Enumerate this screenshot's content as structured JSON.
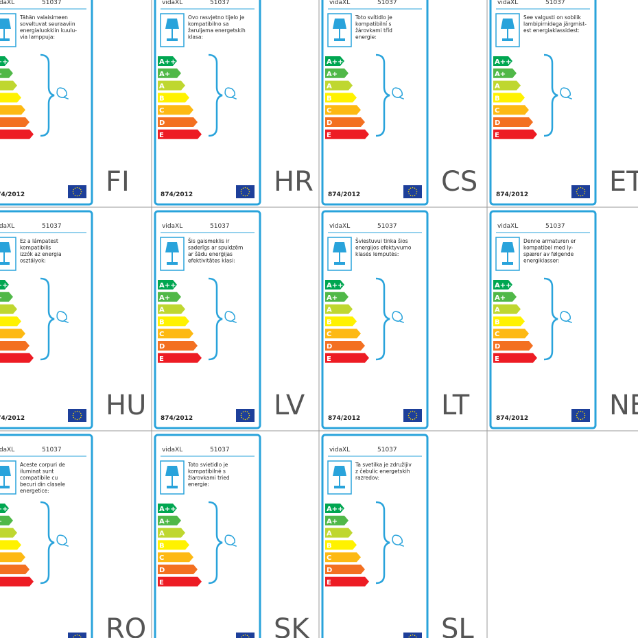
{
  "brand": "vidaXL",
  "model": "51037",
  "regulation": "874/2012",
  "energy_classes": [
    "A++",
    "A+",
    "A",
    "B",
    "C",
    "D",
    "E"
  ],
  "labels": [
    {
      "country": "FI",
      "text": [
        "Tähän valaisimeen",
        "soveltuvat seuraaviin",
        "energialuokkiin kuulu-",
        "via lamppuja:"
      ]
    },
    {
      "country": "HR",
      "text": [
        "Ovo rasvjetno tijelo je",
        "kompatibilno sa",
        "žaruljama energetskih",
        "klasa:"
      ]
    },
    {
      "country": "CS",
      "text": [
        "Toto svítidlo je",
        "kompatibilní s",
        "žárovkami tříd",
        "energie:"
      ]
    },
    {
      "country": "ET",
      "text": [
        "See valgusti on sobilik",
        "lambipirnidega järgmist-",
        "est energiaklassidest:"
      ]
    },
    {
      "country": "HU",
      "text": [
        "Ez a lámpatest",
        "kompatibilis",
        "izzók az energia",
        "osztályok:"
      ]
    },
    {
      "country": "LV",
      "text": [
        "Šis gaismeklis ir",
        "saderīgs ar spuldzēm",
        "ar šādu enerģijas",
        "efektivitātes klasi:"
      ]
    },
    {
      "country": "LT",
      "text": [
        "Šviestuvui tinka šios",
        "energijos efektyvumo",
        "klasės lemputės:"
      ]
    },
    {
      "country": "NE",
      "text": [
        "Denne armaturen er",
        "kompatibel med ly-",
        "spærer av følgende",
        "energiklasser:"
      ]
    },
    {
      "country": "RO",
      "text": [
        "Aceste corpuri de",
        "iluminat sunt",
        "compatibile cu",
        "becuri din clasele",
        "energetice:"
      ]
    },
    {
      "country": "SK",
      "text": [
        "Toto svietidlo je",
        "kompatibilné s",
        "žiarovkami tried",
        "energie:"
      ]
    },
    {
      "country": "SL",
      "text": [
        "Ta svetilka je združljiv",
        "z čebulic energetskih",
        "razredov:"
      ]
    }
  ]
}
